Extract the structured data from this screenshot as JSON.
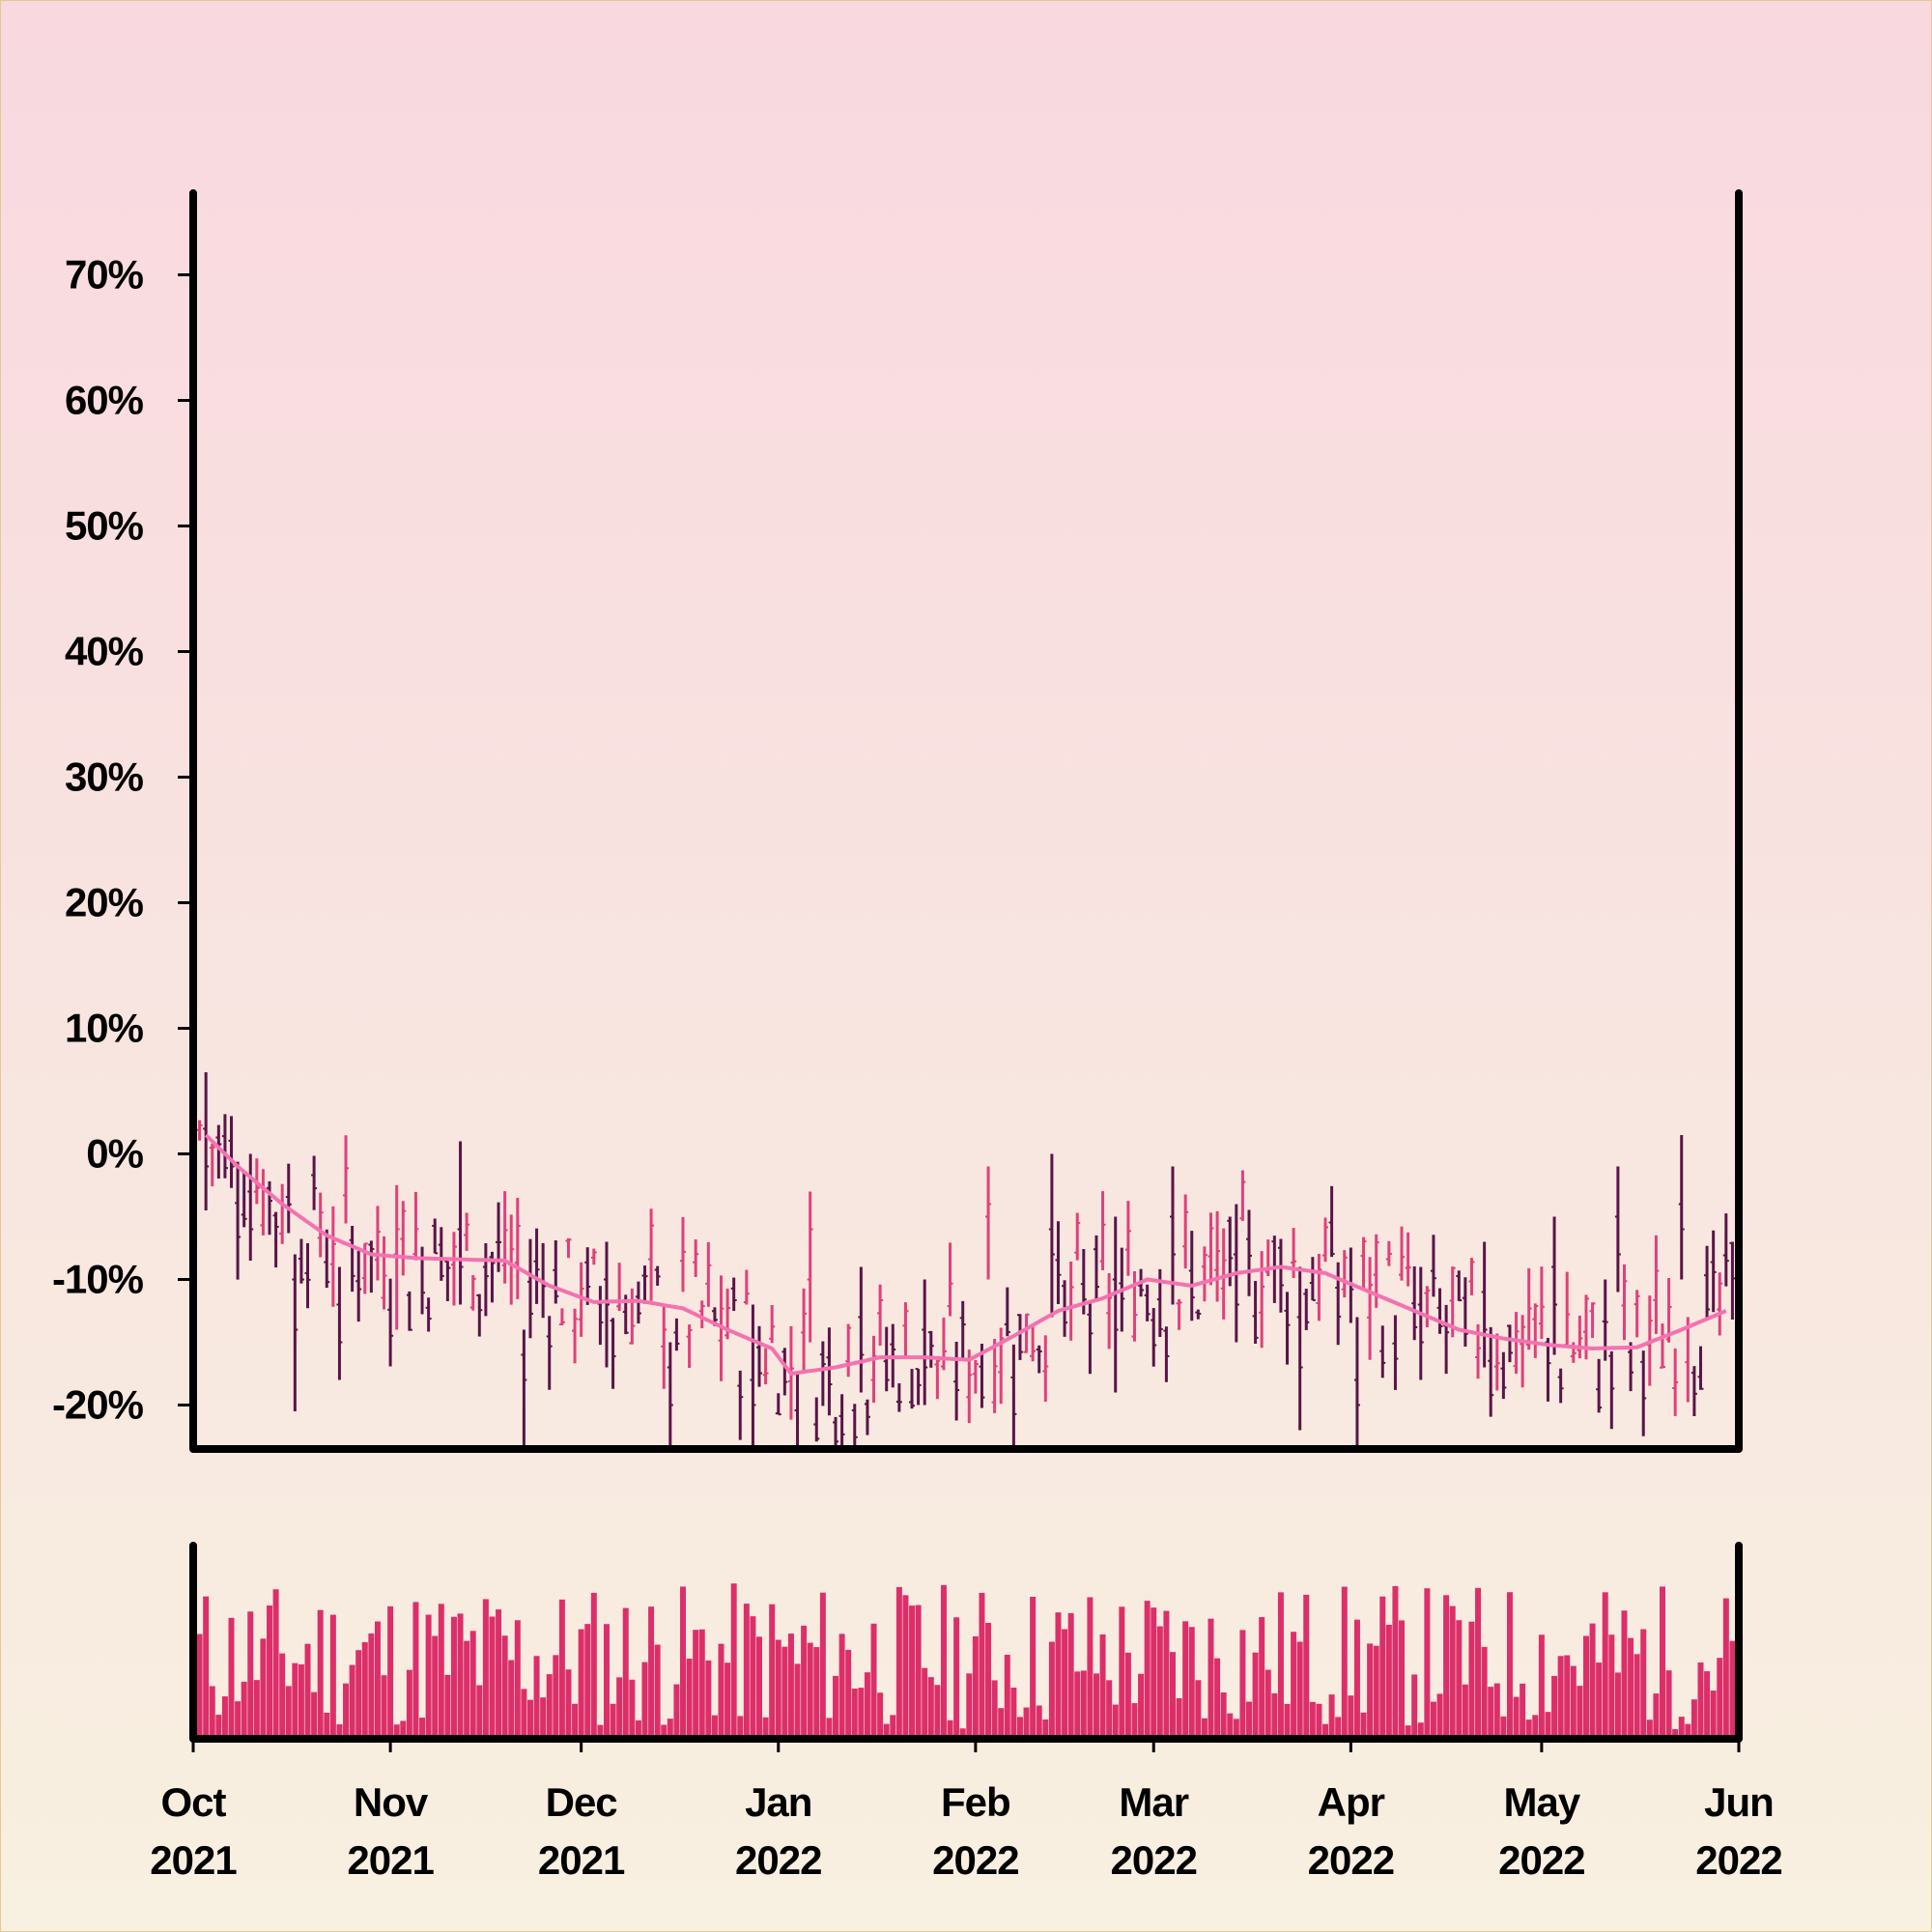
{
  "chart_data": {
    "type": "ohlc",
    "title": "",
    "xlabel": "",
    "ylabel": "",
    "y_axis": {
      "ticks": [
        -20,
        -10,
        0,
        10,
        20,
        30,
        40,
        50,
        60,
        70
      ],
      "tick_labels": [
        "-20%",
        "-10%",
        "0%",
        "10%",
        "20%",
        "30%",
        "40%",
        "50%",
        "60%",
        "70%"
      ],
      "ylim": [
        -23.5,
        76.5
      ]
    },
    "x_axis": {
      "range": [
        "2021-10-01",
        "2022-06-01"
      ],
      "ticks": [
        {
          "date": "2021-10-01",
          "month": "Oct",
          "year": "2021"
        },
        {
          "date": "2021-11-01",
          "month": "Nov",
          "year": "2021"
        },
        {
          "date": "2021-12-01",
          "month": "Dec",
          "year": "2021"
        },
        {
          "date": "2022-01-01",
          "month": "Jan",
          "year": "2022"
        },
        {
          "date": "2022-02-01",
          "month": "Feb",
          "year": "2022"
        },
        {
          "date": "2022-03-01",
          "month": "Mar",
          "year": "2022"
        },
        {
          "date": "2022-04-01",
          "month": "Apr",
          "year": "2022"
        },
        {
          "date": "2022-05-01",
          "month": "May",
          "year": "2022"
        },
        {
          "date": "2022-06-01",
          "month": "Jun",
          "year": "2022"
        }
      ]
    },
    "moving_average": [
      {
        "date": "2021-10-01",
        "value": 2.5
      },
      {
        "date": "2021-10-08",
        "value": -1.0
      },
      {
        "date": "2021-10-15",
        "value": -4.0
      },
      {
        "date": "2021-10-22",
        "value": -6.5
      },
      {
        "date": "2021-10-29",
        "value": -8.0
      },
      {
        "date": "2021-11-05",
        "value": -8.3
      },
      {
        "date": "2021-11-12",
        "value": -8.4
      },
      {
        "date": "2021-11-19",
        "value": -8.5
      },
      {
        "date": "2021-11-26",
        "value": -10.5
      },
      {
        "date": "2021-12-03",
        "value": -11.8
      },
      {
        "date": "2021-12-10",
        "value": -11.7
      },
      {
        "date": "2021-12-17",
        "value": -12.3
      },
      {
        "date": "2021-12-24",
        "value": -14.0
      },
      {
        "date": "2021-12-31",
        "value": -15.5
      },
      {
        "date": "2022-01-03",
        "value": -17.5
      },
      {
        "date": "2022-01-10",
        "value": -17.0
      },
      {
        "date": "2022-01-17",
        "value": -16.2
      },
      {
        "date": "2022-01-24",
        "value": -16.2
      },
      {
        "date": "2022-01-31",
        "value": -16.4
      },
      {
        "date": "2022-02-07",
        "value": -14.5
      },
      {
        "date": "2022-02-14",
        "value": -12.5
      },
      {
        "date": "2022-02-21",
        "value": -11.5
      },
      {
        "date": "2022-02-28",
        "value": -10.0
      },
      {
        "date": "2022-03-07",
        "value": -10.5
      },
      {
        "date": "2022-03-14",
        "value": -9.5
      },
      {
        "date": "2022-03-21",
        "value": -9.0
      },
      {
        "date": "2022-03-28",
        "value": -9.5
      },
      {
        "date": "2022-04-04",
        "value": -11.0
      },
      {
        "date": "2022-04-11",
        "value": -12.5
      },
      {
        "date": "2022-04-18",
        "value": -14.0
      },
      {
        "date": "2022-04-25",
        "value": -14.7
      },
      {
        "date": "2022-05-02",
        "value": -15.2
      },
      {
        "date": "2022-05-09",
        "value": -15.5
      },
      {
        "date": "2022-05-16",
        "value": -15.4
      },
      {
        "date": "2022-05-23",
        "value": -14.0
      },
      {
        "date": "2022-05-30",
        "value": -12.5
      },
      {
        "date": "2022-06-01",
        "value": -8.0
      }
    ],
    "ohlc_samples": [
      {
        "date": "2021-10-03",
        "open": 2,
        "high": 6.5,
        "low": -4.5,
        "close": -1
      },
      {
        "date": "2021-10-10",
        "open": -3,
        "high": 0,
        "low": -8.5,
        "close": -6
      },
      {
        "date": "2021-10-17",
        "open": -10,
        "high": -8,
        "low": -20.5,
        "close": -14
      },
      {
        "date": "2021-10-24",
        "open": -12,
        "high": -9,
        "low": -18,
        "close": -15
      },
      {
        "date": "2021-11-02",
        "open": -8,
        "high": -2.5,
        "low": -14,
        "close": -6
      },
      {
        "date": "2021-11-12",
        "open": -6,
        "high": 1,
        "low": -12,
        "close": -9
      },
      {
        "date": "2021-11-22",
        "open": -16,
        "high": -14,
        "low": -24,
        "close": -18
      },
      {
        "date": "2021-12-05",
        "open": -10,
        "high": -7,
        "low": -17,
        "close": -12
      },
      {
        "date": "2021-12-15",
        "open": -17,
        "high": -15,
        "low": -24,
        "close": -20
      },
      {
        "date": "2021-12-28",
        "open": -18,
        "high": -12,
        "low": -24,
        "close": -20
      },
      {
        "date": "2022-01-06",
        "open": -10,
        "high": -3,
        "low": -15,
        "close": -6
      },
      {
        "date": "2022-01-14",
        "open": -13,
        "high": -9,
        "low": -19,
        "close": -16
      },
      {
        "date": "2022-01-24",
        "open": -14,
        "high": -10,
        "low": -20,
        "close": -17
      },
      {
        "date": "2022-02-03",
        "open": -5,
        "high": -1,
        "low": -10,
        "close": -4
      },
      {
        "date": "2022-02-13",
        "open": -6,
        "high": 0,
        "low": -13,
        "close": -8
      },
      {
        "date": "2022-02-23",
        "open": -10,
        "high": -5,
        "low": -19,
        "close": -14
      },
      {
        "date": "2022-03-04",
        "open": -5,
        "high": -1,
        "low": -12,
        "close": -8
      },
      {
        "date": "2022-03-14",
        "open": -8,
        "high": -4,
        "low": -15,
        "close": -12
      },
      {
        "date": "2022-03-24",
        "open": -13,
        "high": -9,
        "low": -22,
        "close": -17
      },
      {
        "date": "2022-04-02",
        "open": -18,
        "high": -13,
        "low": -24,
        "close": -20
      },
      {
        "date": "2022-04-12",
        "open": -12,
        "high": -9,
        "low": -18,
        "close": -15
      },
      {
        "date": "2022-04-22",
        "open": -11,
        "high": -7,
        "low": -17,
        "close": -14
      },
      {
        "date": "2022-05-03",
        "open": -9,
        "high": -5,
        "low": -16,
        "close": -12
      },
      {
        "date": "2022-05-13",
        "open": -5,
        "high": -1,
        "low": -11,
        "close": -8
      },
      {
        "date": "2022-05-23",
        "open": -4,
        "high": 1.5,
        "low": -10,
        "close": -6
      }
    ],
    "volume": {
      "type": "bar",
      "note_units": "relative"
    },
    "colors": {
      "up": "#e0407a",
      "down": "#5a1448",
      "moving_average": "#f472b0",
      "volume": "#dc2f6a",
      "axis": "#000000",
      "background_top": "#f9d8e0",
      "background_bottom": "#f8f0e0"
    },
    "grid": false,
    "legend": "none"
  }
}
